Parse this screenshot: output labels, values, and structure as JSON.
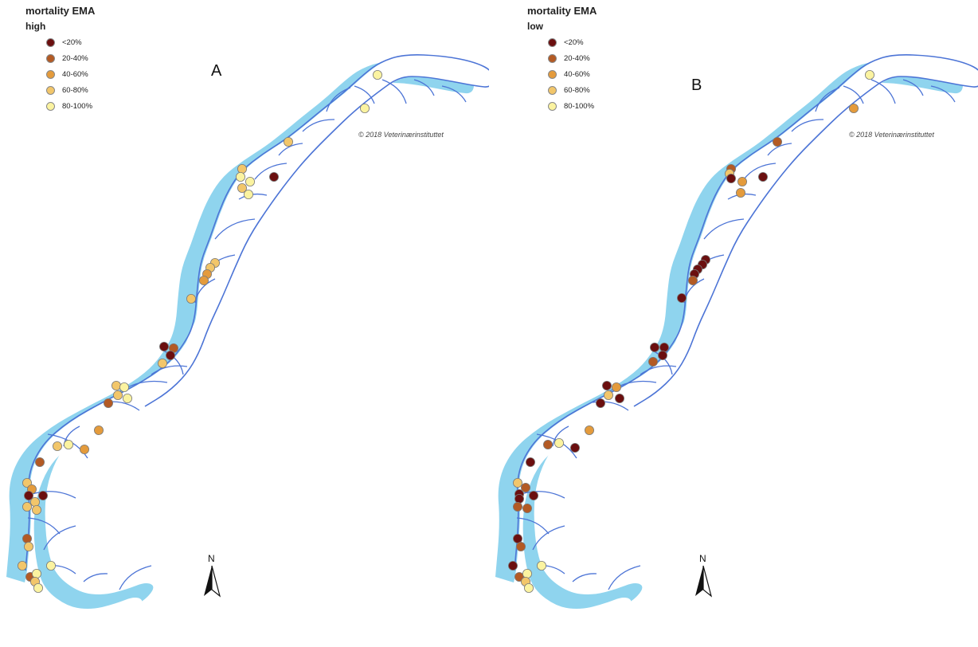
{
  "legend": {
    "title": "mortality EMA",
    "classes": [
      {
        "label": "<20%",
        "color": "#6b0f0f"
      },
      {
        "label": "20-40%",
        "color": "#b35a24"
      },
      {
        "label": "40-60%",
        "color": "#e49b3c"
      },
      {
        "label": "60-80%",
        "color": "#f2c66a"
      },
      {
        "label": "80-100%",
        "color": "#fbf3a0"
      }
    ]
  },
  "colors": {
    "sea_buffer": "#8fd4ee",
    "coastline": "#4c74d6"
  },
  "panels": [
    {
      "id": "A",
      "letter": "A",
      "scenario": "high",
      "copyright": "© 2018 Veterinærinstituttet",
      "north": "N",
      "north_icon": "north-arrow-icon"
    },
    {
      "id": "B",
      "letter": "B",
      "scenario": "low",
      "copyright": "© 2018 Veterinærinstituttet",
      "north": "N",
      "north_icon": "north-arrow-icon"
    }
  ]
}
